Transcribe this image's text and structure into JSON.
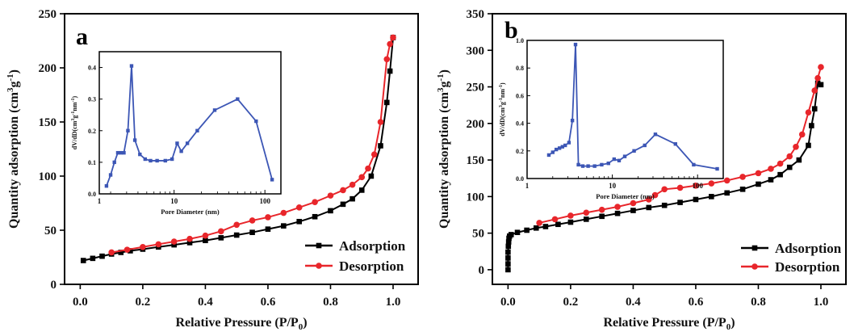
{
  "chart_data": [
    {
      "panel": "a",
      "type": "line",
      "xlabel": "Relative Pressure (P/P",
      "xlabel_sub": "0",
      "xlabel_end": ")",
      "ylabel": "Quantity adsorption (cm",
      "ylabel_sup": "3",
      "ylabel_mid": "g",
      "ylabel_sup2": "-1",
      "ylabel_end": ")",
      "xlim": [
        -0.05,
        1.08
      ],
      "ylim": [
        0,
        250
      ],
      "xticks": [
        "0.0",
        "0.2",
        "0.4",
        "0.6",
        "0.8",
        "1.0"
      ],
      "xtick_values": [
        0,
        0.2,
        0.4,
        0.6,
        0.8,
        1.0
      ],
      "yticks": [
        "0",
        "50",
        "100",
        "150",
        "200",
        "250"
      ],
      "ytick_values": [
        0,
        50,
        100,
        150,
        200,
        250
      ],
      "legend_position": "bottom-right",
      "series": [
        {
          "name": "Adsorption",
          "color": "#000000",
          "marker": "square",
          "points": [
            [
              0.01,
              22
            ],
            [
              0.04,
              24
            ],
            [
              0.07,
              26
            ],
            [
              0.1,
              28
            ],
            [
              0.13,
              29.5
            ],
            [
              0.16,
              31
            ],
            [
              0.2,
              32.5
            ],
            [
              0.25,
              34.5
            ],
            [
              0.3,
              36.5
            ],
            [
              0.35,
              38.5
            ],
            [
              0.4,
              40.5
            ],
            [
              0.45,
              43
            ],
            [
              0.5,
              45.5
            ],
            [
              0.55,
              48
            ],
            [
              0.6,
              51
            ],
            [
              0.65,
              54
            ],
            [
              0.7,
              58
            ],
            [
              0.75,
              62.5
            ],
            [
              0.8,
              68
            ],
            [
              0.84,
              74
            ],
            [
              0.87,
              79
            ],
            [
              0.9,
              87
            ],
            [
              0.93,
              100
            ],
            [
              0.96,
              128
            ],
            [
              0.98,
              168
            ],
            [
              0.99,
              197
            ],
            [
              1.0,
              228
            ]
          ]
        },
        {
          "name": "Desorption",
          "color": "#e8262b",
          "marker": "circle",
          "points": [
            [
              1.0,
              228
            ],
            [
              0.99,
              222
            ],
            [
              0.98,
              208
            ],
            [
              0.96,
              150
            ],
            [
              0.94,
              120
            ],
            [
              0.92,
              107
            ],
            [
              0.9,
              99
            ],
            [
              0.87,
              92
            ],
            [
              0.84,
              87
            ],
            [
              0.8,
              82
            ],
            [
              0.75,
              76
            ],
            [
              0.7,
              71
            ],
            [
              0.65,
              66
            ],
            [
              0.6,
              62
            ],
            [
              0.55,
              59
            ],
            [
              0.5,
              55
            ],
            [
              0.45,
              49
            ],
            [
              0.4,
              45
            ],
            [
              0.35,
              42
            ],
            [
              0.3,
              39.5
            ],
            [
              0.25,
              37
            ],
            [
              0.2,
              34.5
            ],
            [
              0.15,
              32
            ],
            [
              0.1,
              29.5
            ]
          ]
        }
      ],
      "inset": {
        "type": "line",
        "xscale": "log",
        "xlabel": "Pore Diameter (nm)",
        "ylabel": "dV/dD(cm",
        "ylabel_sup": "3",
        "ylabel_mid": "g",
        "ylabel_sup2": "-1",
        "ylabel_mid2": "nm",
        "ylabel_sup3": "-1",
        "ylabel_end": ")",
        "xlim": [
          1.5,
          150
        ],
        "ylim": [
          0,
          0.45
        ],
        "xticks": [
          "1",
          "10",
          "100"
        ],
        "xtick_values": [
          1,
          10,
          100
        ],
        "yticks": [
          "0.0",
          "0.1",
          "0.2",
          "0.3",
          "0.4"
        ],
        "ytick_values": [
          0,
          0.1,
          0.2,
          0.3,
          0.4
        ],
        "color": "#3c56b5",
        "points": [
          [
            1.8,
            0.025
          ],
          [
            2.0,
            0.06
          ],
          [
            2.2,
            0.1
          ],
          [
            2.4,
            0.13
          ],
          [
            2.6,
            0.13
          ],
          [
            2.8,
            0.13
          ],
          [
            3.1,
            0.2
          ],
          [
            3.4,
            0.405
          ],
          [
            3.7,
            0.17
          ],
          [
            4.2,
            0.125
          ],
          [
            4.8,
            0.11
          ],
          [
            5.5,
            0.105
          ],
          [
            6.5,
            0.105
          ],
          [
            8,
            0.105
          ],
          [
            9.5,
            0.11
          ],
          [
            10.8,
            0.16
          ],
          [
            12,
            0.135
          ],
          [
            14,
            0.16
          ],
          [
            18,
            0.2
          ],
          [
            28,
            0.265
          ],
          [
            50,
            0.3
          ],
          [
            80,
            0.23
          ],
          [
            120,
            0.045
          ]
        ]
      }
    },
    {
      "panel": "b",
      "type": "line",
      "xlabel": "Relative Pressure (P/P",
      "xlabel_sub": "0",
      "xlabel_end": ")",
      "ylabel": "Quantity adsorption (cm",
      "ylabel_sup": "3",
      "ylabel_mid": "g",
      "ylabel_sup2": "-1",
      "ylabel_end": ")",
      "xlim": [
        -0.05,
        1.08
      ],
      "ylim": [
        -20,
        350
      ],
      "xticks": [
        "0.0",
        "0.2",
        "0.4",
        "0.6",
        "0.8",
        "1.0"
      ],
      "xtick_values": [
        0,
        0.2,
        0.4,
        0.6,
        0.8,
        1.0
      ],
      "yticks": [
        "0",
        "50",
        "100",
        "150",
        "200",
        "250",
        "300",
        "350"
      ],
      "ytick_values": [
        0,
        50,
        100,
        150,
        200,
        250,
        300,
        350
      ],
      "legend_position": "bottom-right",
      "series": [
        {
          "name": "Adsorption",
          "color": "#000000",
          "marker": "square",
          "points": [
            [
              0.0,
              0
            ],
            [
              0.0,
              8
            ],
            [
              0.0,
              16
            ],
            [
              0.0,
              24
            ],
            [
              0.001,
              32
            ],
            [
              0.002,
              38
            ],
            [
              0.003,
              43
            ],
            [
              0.005,
              46
            ],
            [
              0.01,
              48
            ],
            [
              0.03,
              51
            ],
            [
              0.06,
              54
            ],
            [
              0.09,
              57
            ],
            [
              0.12,
              59
            ],
            [
              0.16,
              62
            ],
            [
              0.2,
              65
            ],
            [
              0.25,
              69
            ],
            [
              0.3,
              73
            ],
            [
              0.35,
              77
            ],
            [
              0.4,
              81
            ],
            [
              0.45,
              85
            ],
            [
              0.5,
              88
            ],
            [
              0.55,
              92
            ],
            [
              0.6,
              96
            ],
            [
              0.65,
              100
            ],
            [
              0.7,
              105
            ],
            [
              0.75,
              110
            ],
            [
              0.8,
              117
            ],
            [
              0.84,
              123
            ],
            [
              0.87,
              130
            ],
            [
              0.9,
              140
            ],
            [
              0.93,
              150
            ],
            [
              0.96,
              170
            ],
            [
              0.97,
              197
            ],
            [
              0.98,
              220
            ],
            [
              0.99,
              255
            ],
            [
              1.0,
              253
            ]
          ]
        },
        {
          "name": "Desorption",
          "color": "#e8262b",
          "marker": "circle",
          "points": [
            [
              1.0,
              277
            ],
            [
              0.99,
              262
            ],
            [
              0.98,
              245
            ],
            [
              0.96,
              215
            ],
            [
              0.94,
              185
            ],
            [
              0.92,
              168
            ],
            [
              0.9,
              155
            ],
            [
              0.87,
              145
            ],
            [
              0.84,
              138
            ],
            [
              0.8,
              132
            ],
            [
              0.75,
              127
            ],
            [
              0.7,
              122
            ],
            [
              0.65,
              118
            ],
            [
              0.6,
              115
            ],
            [
              0.55,
              112
            ],
            [
              0.5,
              110
            ],
            [
              0.47,
              102
            ],
            [
              0.45,
              96
            ],
            [
              0.4,
              91
            ],
            [
              0.35,
              86
            ],
            [
              0.3,
              82
            ],
            [
              0.25,
              78
            ],
            [
              0.2,
              74
            ],
            [
              0.15,
              69
            ],
            [
              0.1,
              64
            ]
          ]
        }
      ],
      "inset": {
        "type": "line",
        "xscale": "log",
        "xlabel": "Pore Diameter (nm)",
        "ylabel": "dV/dD(cm",
        "ylabel_sup": "3",
        "ylabel_mid": "g",
        "ylabel_sup2": "-1",
        "ylabel_mid2": "nm",
        "ylabel_sup3": "-1",
        "ylabel_end": ")",
        "xlim": [
          1.0,
          200
        ],
        "ylim": [
          0,
          1.0
        ],
        "xticks": [
          "1",
          "10",
          "100"
        ],
        "xtick_values": [
          1,
          10,
          100
        ],
        "yticks": [
          "0.0",
          "0.2",
          "0.4",
          "0.6",
          "0.8",
          "1.0"
        ],
        "ytick_values": [
          0,
          0.2,
          0.4,
          0.6,
          0.8,
          1.0
        ],
        "color": "#3c56b5",
        "points": [
          [
            1.8,
            0.17
          ],
          [
            2.0,
            0.19
          ],
          [
            2.2,
            0.21
          ],
          [
            2.4,
            0.22
          ],
          [
            2.6,
            0.23
          ],
          [
            2.8,
            0.24
          ],
          [
            3.1,
            0.26
          ],
          [
            3.4,
            0.42
          ],
          [
            3.7,
            0.97
          ],
          [
            4.0,
            0.1
          ],
          [
            4.5,
            0.09
          ],
          [
            5.2,
            0.09
          ],
          [
            6.2,
            0.09
          ],
          [
            7.5,
            0.1
          ],
          [
            9,
            0.11
          ],
          [
            10.5,
            0.14
          ],
          [
            12,
            0.13
          ],
          [
            14,
            0.16
          ],
          [
            18,
            0.2
          ],
          [
            24,
            0.24
          ],
          [
            32,
            0.32
          ],
          [
            55,
            0.25
          ],
          [
            90,
            0.1
          ],
          [
            170,
            0.07
          ]
        ]
      }
    }
  ]
}
